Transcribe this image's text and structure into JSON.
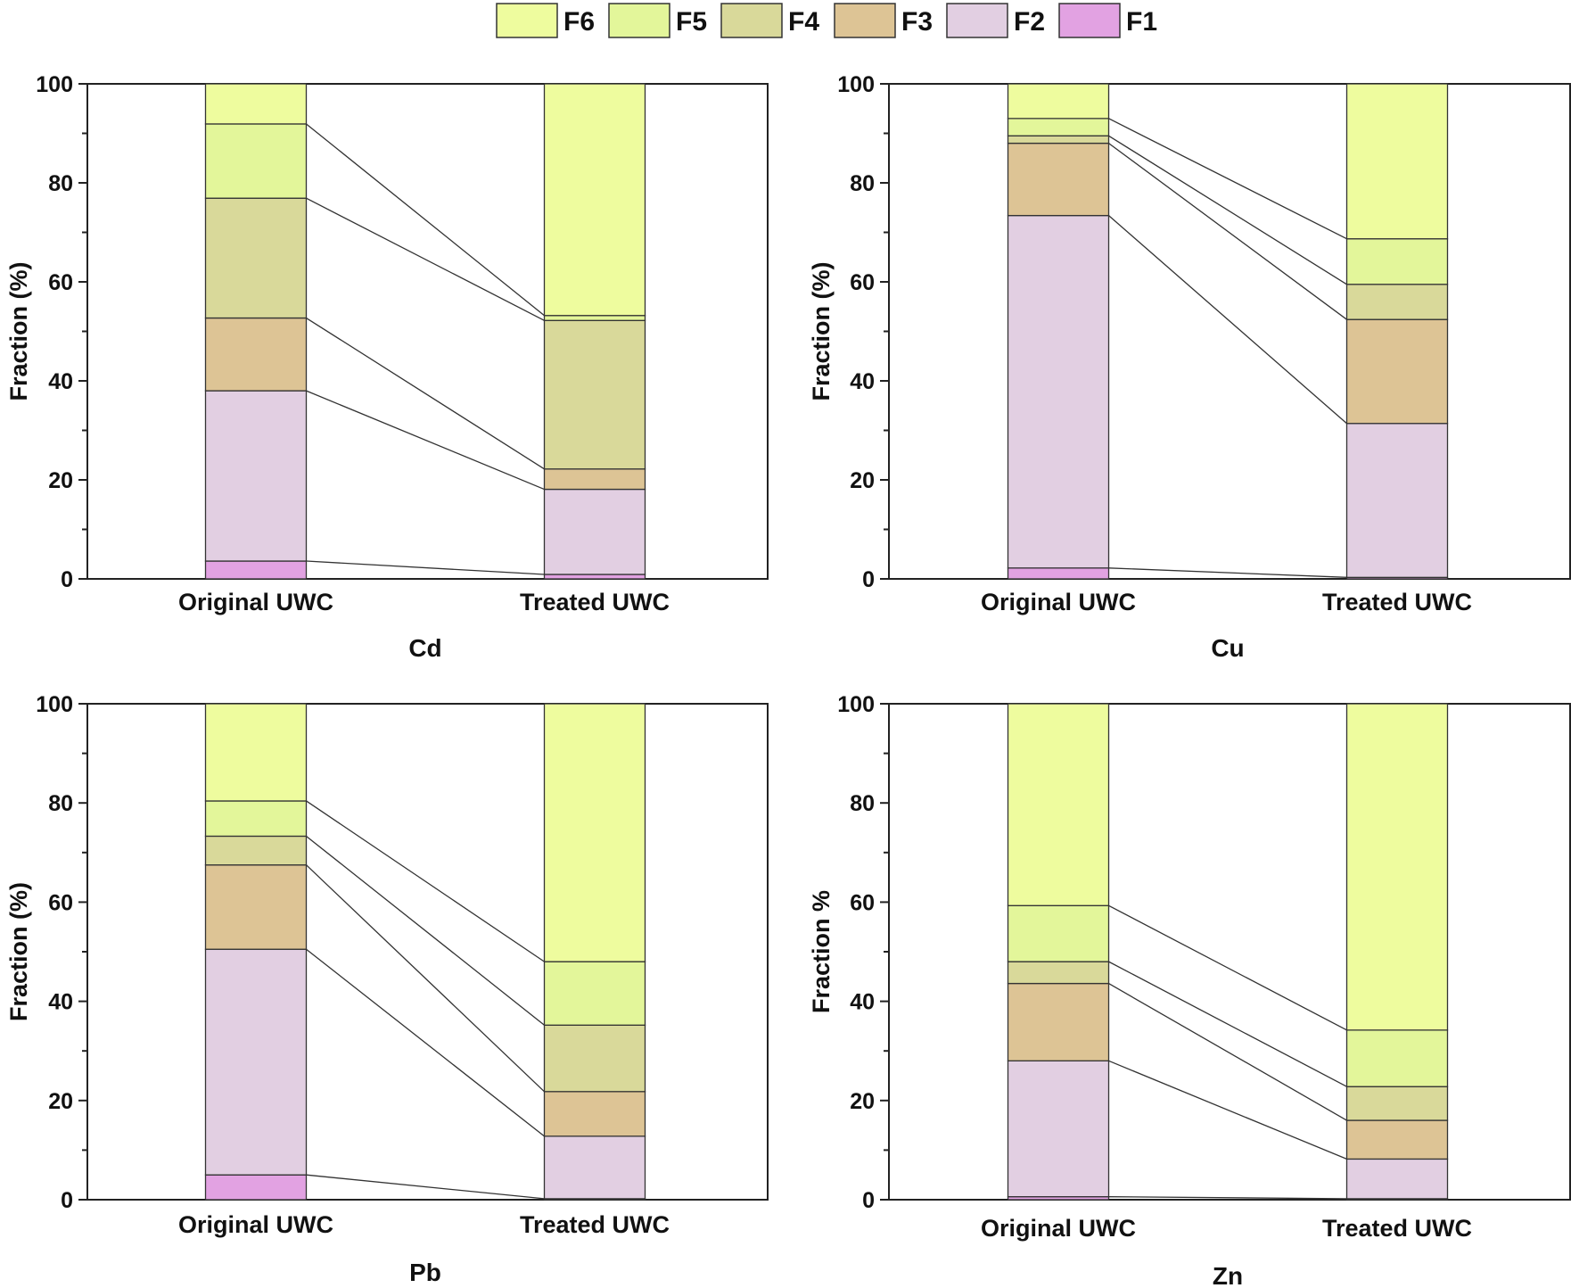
{
  "legend": {
    "entries": [
      {
        "name": "F6",
        "color": "#eefc9e"
      },
      {
        "name": "F5",
        "color": "#e3f69a"
      },
      {
        "name": "F4",
        "color": "#d9d99a"
      },
      {
        "name": "F3",
        "color": "#ddc495"
      },
      {
        "name": "F2",
        "color": "#e2cfe2"
      },
      {
        "name": "F1",
        "color": "#e2a2e2"
      }
    ]
  },
  "chart_data": [
    {
      "type": "bar",
      "stacked": true,
      "title": "Cd",
      "ylabel": "Fraction (%)",
      "ylim": [
        0,
        100
      ],
      "yticks": [
        0,
        20,
        40,
        60,
        80,
        100
      ],
      "categories": [
        "Original UWC",
        "Treated UWC"
      ],
      "series": [
        {
          "name": "F1",
          "values": [
            3.6,
            0.9
          ]
        },
        {
          "name": "F2",
          "values": [
            34.4,
            17.2
          ]
        },
        {
          "name": "F3",
          "values": [
            14.7,
            4.1
          ]
        },
        {
          "name": "F4",
          "values": [
            24.2,
            30.0
          ]
        },
        {
          "name": "F5",
          "values": [
            15.0,
            1.0
          ]
        },
        {
          "name": "F6",
          "values": [
            8.1,
            46.8
          ]
        }
      ]
    },
    {
      "type": "bar",
      "stacked": true,
      "title": "Cu",
      "ylabel": "Fraction (%)",
      "ylim": [
        0,
        100
      ],
      "yticks": [
        0,
        20,
        40,
        60,
        80,
        100
      ],
      "categories": [
        "Original UWC",
        "Treated UWC"
      ],
      "series": [
        {
          "name": "F1",
          "values": [
            2.2,
            0.3
          ]
        },
        {
          "name": "F2",
          "values": [
            71.2,
            31.1
          ]
        },
        {
          "name": "F3",
          "values": [
            14.6,
            21.0
          ]
        },
        {
          "name": "F4",
          "values": [
            1.5,
            7.1
          ]
        },
        {
          "name": "F5",
          "values": [
            3.5,
            9.2
          ]
        },
        {
          "name": "F6",
          "values": [
            7.0,
            31.3
          ]
        }
      ]
    },
    {
      "type": "bar",
      "stacked": true,
      "title": "Pb",
      "ylabel": "Fraction (%)",
      "ylim": [
        0,
        100
      ],
      "yticks": [
        0,
        20,
        40,
        60,
        80,
        100
      ],
      "categories": [
        "Original UWC",
        "Treated UWC"
      ],
      "series": [
        {
          "name": "F1",
          "values": [
            5.0,
            0.2
          ]
        },
        {
          "name": "F2",
          "values": [
            45.5,
            12.6
          ]
        },
        {
          "name": "F3",
          "values": [
            17.0,
            9.0
          ]
        },
        {
          "name": "F4",
          "values": [
            5.8,
            13.4
          ]
        },
        {
          "name": "F5",
          "values": [
            7.1,
            12.8
          ]
        },
        {
          "name": "F6",
          "values": [
            19.6,
            52.0
          ]
        }
      ]
    },
    {
      "type": "bar",
      "stacked": true,
      "title": "Zn",
      "ylabel": "Fraction %",
      "ylim": [
        0,
        100
      ],
      "yticks": [
        0,
        20,
        40,
        60,
        80,
        100
      ],
      "categories": [
        "Original UWC",
        "Treated UWC"
      ],
      "series": [
        {
          "name": "F1",
          "values": [
            0.6,
            0.2
          ]
        },
        {
          "name": "F2",
          "values": [
            27.4,
            8.0
          ]
        },
        {
          "name": "F3",
          "values": [
            15.6,
            7.8
          ]
        },
        {
          "name": "F4",
          "values": [
            4.4,
            6.8
          ]
        },
        {
          "name": "F5",
          "values": [
            11.3,
            11.4
          ]
        },
        {
          "name": "F6",
          "values": [
            40.7,
            65.8
          ]
        }
      ]
    }
  ]
}
